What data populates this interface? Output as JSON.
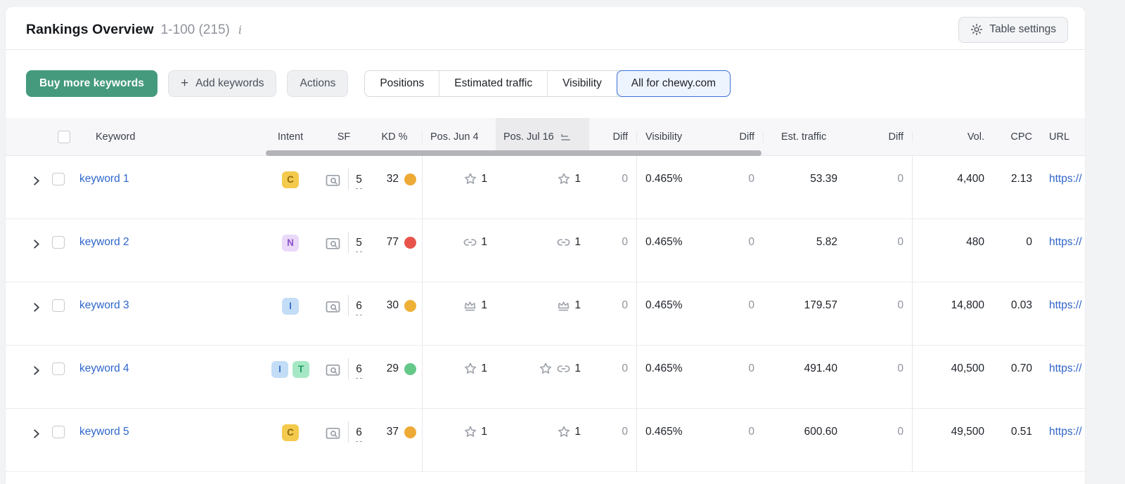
{
  "header": {
    "title": "Rankings Overview",
    "range": "1-100 (215)",
    "table_settings_label": "Table settings"
  },
  "toolbar": {
    "buy_label": "Buy more keywords",
    "add_label": "Add keywords",
    "actions_label": "Actions",
    "segments": {
      "positions": "Positions",
      "estimated_traffic": "Estimated traffic",
      "visibility": "Visibility",
      "all_for_domain": "All for chewy.com"
    },
    "selected_segment": "All for chewy.com"
  },
  "table": {
    "headers": {
      "keyword": "Keyword",
      "intent": "Intent",
      "sf": "SF",
      "kd": "KD %",
      "pos1": "Pos. Jun 4",
      "pos2": "Pos. Jul 16",
      "diff": "Diff",
      "visibility": "Visibility",
      "est_traffic": "Est. traffic",
      "vol": "Vol.",
      "cpc": "CPC",
      "url": "URL"
    },
    "sorted_column": "Pos. Jul 16",
    "rows": [
      {
        "keyword": "keyword 1",
        "intents": [
          {
            "letter": "C",
            "bg": "#f4ca4d",
            "fg": "#8d6a12"
          }
        ],
        "sf": "5",
        "kd": "32",
        "kd_color": "#eeaa36",
        "pos1": {
          "icons": [
            "star-icon"
          ],
          "value": "1"
        },
        "pos2": {
          "icons": [
            "star-icon"
          ],
          "value": "1"
        },
        "diff1": "0",
        "visibility": "0.465%",
        "diff2": "0",
        "est_traffic": "53.39",
        "diff3": "0",
        "vol": "4,400",
        "cpc": "2.13",
        "url": "https://"
      },
      {
        "keyword": "keyword 2",
        "intents": [
          {
            "letter": "N",
            "bg": "#ead9f9",
            "fg": "#8a52cc"
          }
        ],
        "sf": "5",
        "kd": "77",
        "kd_color": "#e8544a",
        "pos1": {
          "icons": [
            "link-icon"
          ],
          "value": "1"
        },
        "pos2": {
          "icons": [
            "link-icon"
          ],
          "value": "1"
        },
        "diff1": "0",
        "visibility": "0.465%",
        "diff2": "0",
        "est_traffic": "5.82",
        "diff3": "0",
        "vol": "480",
        "cpc": "0",
        "url": "https://"
      },
      {
        "keyword": "keyword 3",
        "intents": [
          {
            "letter": "I",
            "bg": "#c3ddf6",
            "fg": "#3a74c4"
          }
        ],
        "sf": "6",
        "kd": "30",
        "kd_color": "#eeb136",
        "pos1": {
          "icons": [
            "crown-icon"
          ],
          "value": "1"
        },
        "pos2": {
          "icons": [
            "crown-icon"
          ],
          "value": "1"
        },
        "diff1": "0",
        "visibility": "0.465%",
        "diff2": "0",
        "est_traffic": "179.57",
        "diff3": "0",
        "vol": "14,800",
        "cpc": "0.03",
        "url": "https://"
      },
      {
        "keyword": "keyword 4",
        "intents": [
          {
            "letter": "I",
            "bg": "#c3ddf6",
            "fg": "#3a74c4"
          },
          {
            "letter": "T",
            "bg": "#a6e8c5",
            "fg": "#1f9e62"
          }
        ],
        "sf": "6",
        "kd": "29",
        "kd_color": "#63c888",
        "pos1": {
          "icons": [
            "star-icon"
          ],
          "value": "1"
        },
        "pos2": {
          "icons": [
            "star-icon",
            "link-icon"
          ],
          "value": "1"
        },
        "diff1": "0",
        "visibility": "0.465%",
        "diff2": "0",
        "est_traffic": "491.40",
        "diff3": "0",
        "vol": "40,500",
        "cpc": "0.70",
        "url": "https://"
      },
      {
        "keyword": "keyword 5",
        "intents": [
          {
            "letter": "C",
            "bg": "#f4ca4d",
            "fg": "#8d6a12"
          }
        ],
        "sf": "6",
        "kd": "37",
        "kd_color": "#eeaa36",
        "pos1": {
          "icons": [
            "star-icon"
          ],
          "value": "1"
        },
        "pos2": {
          "icons": [
            "star-icon"
          ],
          "value": "1"
        },
        "diff1": "0",
        "visibility": "0.465%",
        "diff2": "0",
        "est_traffic": "600.60",
        "diff3": "0",
        "vol": "49,500",
        "cpc": "0.51",
        "url": "https://"
      }
    ]
  },
  "colors": {
    "accent_green": "#459a7d",
    "selected_border_blue": "#3a70da",
    "link_blue": "#2f66cc",
    "kd_red": "#e8544a",
    "kd_amber": "#eeaa36",
    "kd_green": "#63c888"
  }
}
